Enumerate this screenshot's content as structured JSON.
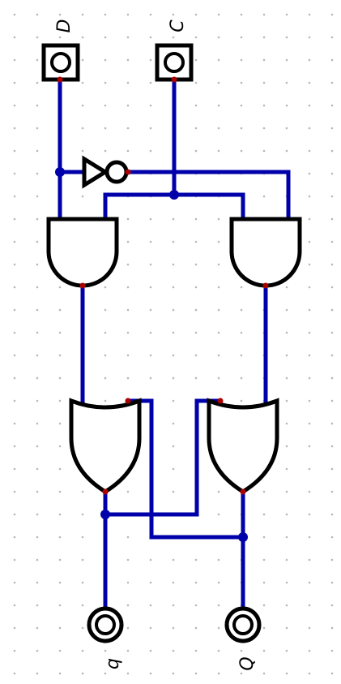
{
  "diagram": {
    "inputs": [
      {
        "id": "input-d",
        "label": "D"
      },
      {
        "id": "input-c",
        "label": "C"
      }
    ],
    "outputs": [
      {
        "id": "output-q-bar",
        "label": "q"
      },
      {
        "id": "output-q",
        "label": "Q"
      }
    ],
    "gates": [
      {
        "id": "not-gate",
        "type": "NOT"
      },
      {
        "id": "and-gate-left",
        "type": "AND"
      },
      {
        "id": "and-gate-right",
        "type": "AND"
      },
      {
        "id": "or-gate-left",
        "type": "OR"
      },
      {
        "id": "or-gate-right",
        "type": "OR"
      }
    ]
  },
  "colors": {
    "wire": "#0000aa",
    "gate": "#000000",
    "pin": "#aa0000",
    "grid": "#b8b8b8",
    "background": "#ffffff"
  }
}
